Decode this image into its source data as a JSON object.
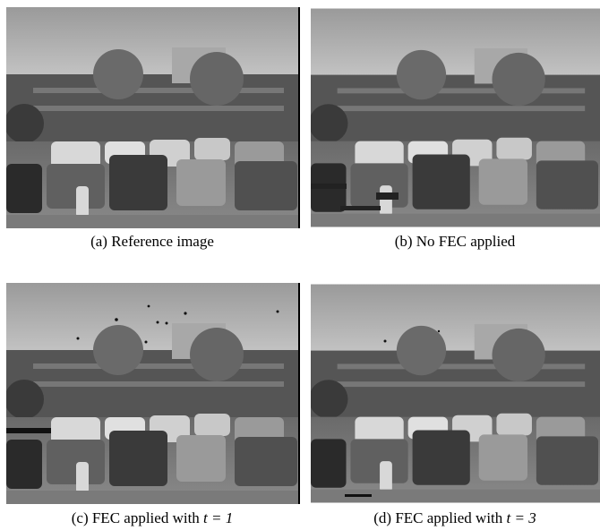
{
  "figure": {
    "panels": [
      {
        "caption": "(a) Reference image"
      },
      {
        "caption": "(b) No FEC applied"
      },
      {
        "caption": "(c) FEC applied with",
        "math": "t = 1"
      },
      {
        "caption": "(d) FEC applied with",
        "math": "t = 3"
      }
    ]
  }
}
